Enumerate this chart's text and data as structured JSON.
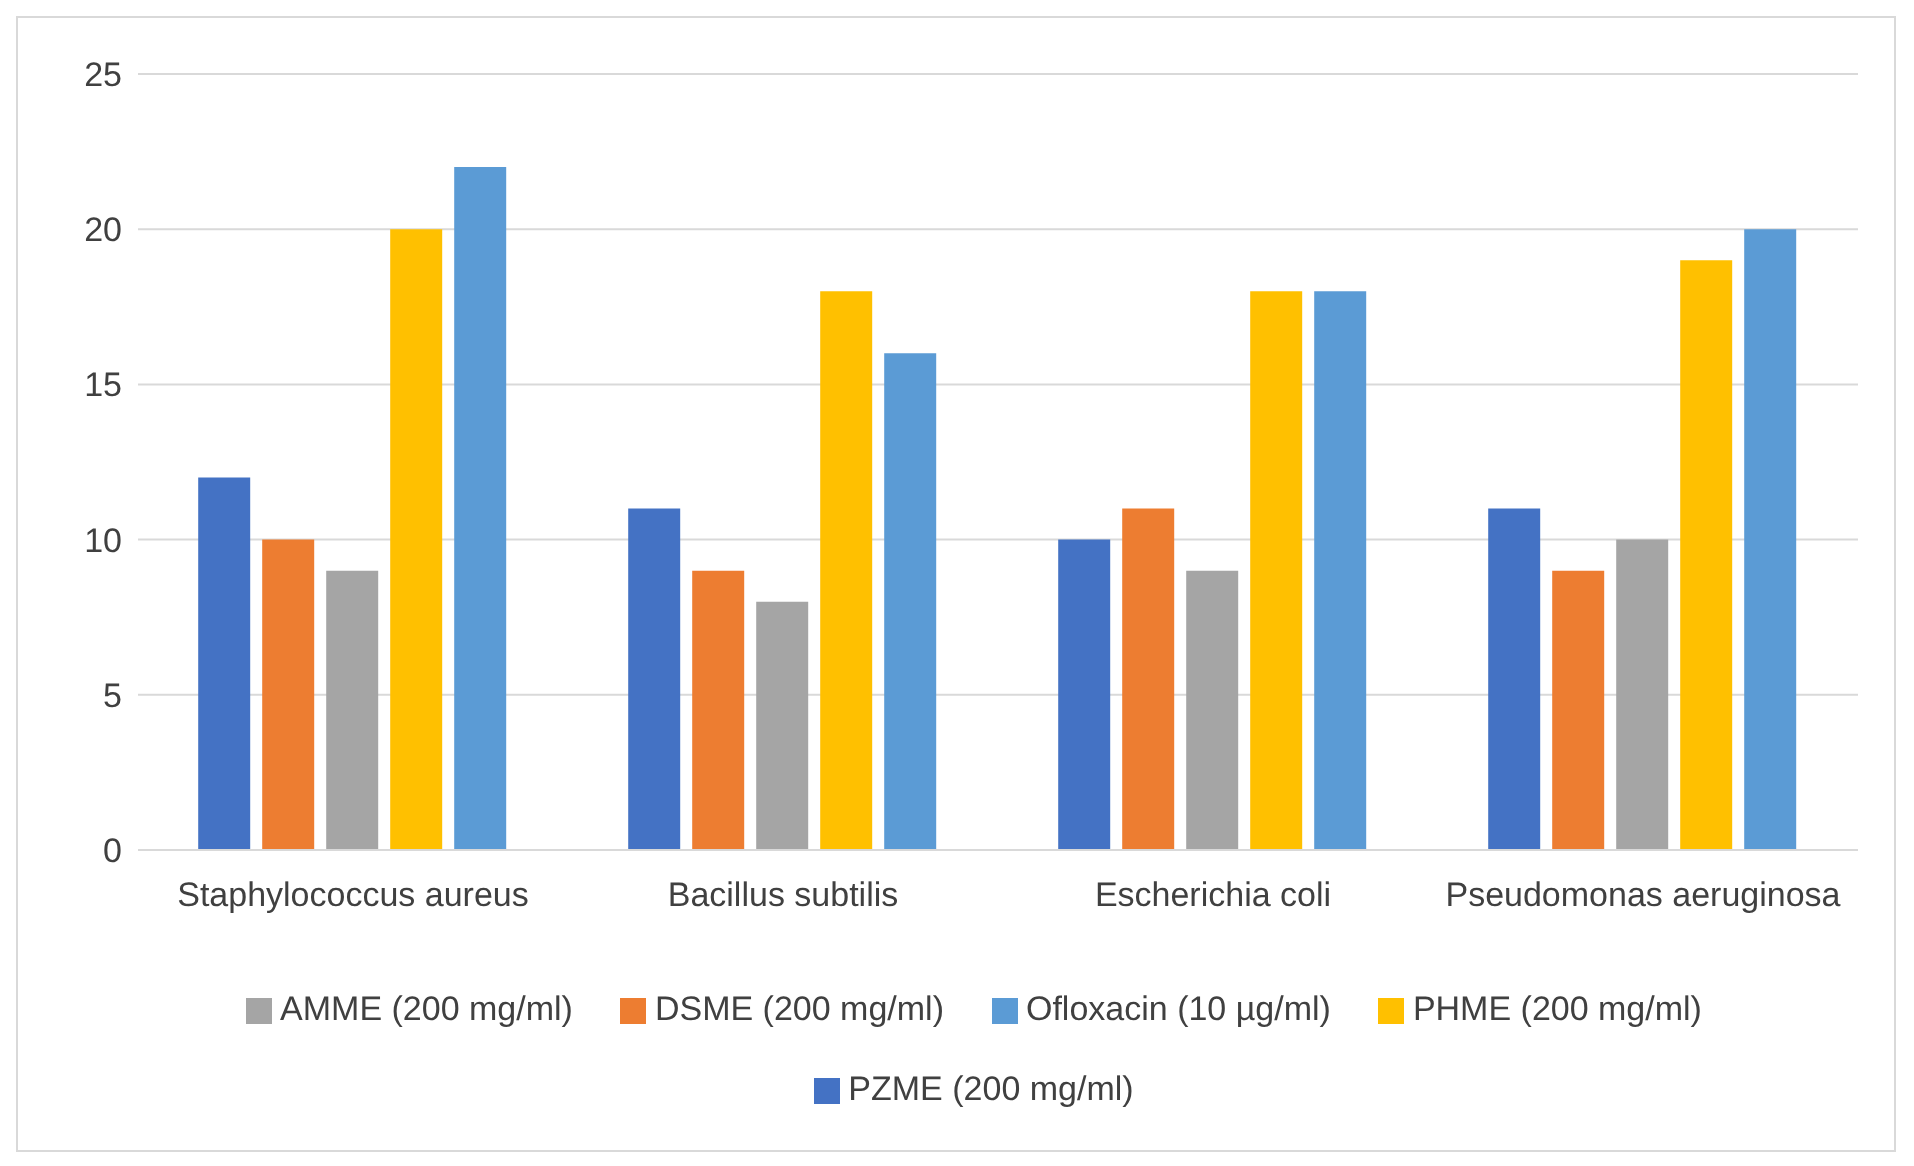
{
  "chart_data": {
    "type": "bar",
    "categories": [
      "Staphylococcus aureus",
      "Bacillus subtilis",
      "Escherichia coli",
      "Pseudomonas aeruginosa"
    ],
    "series": [
      {
        "name": "PZME (200 mg/ml)",
        "color": "#4472c4",
        "values": [
          12,
          11,
          10,
          11
        ]
      },
      {
        "name": "DSME (200 mg/ml)",
        "color": "#ed7d31",
        "values": [
          10,
          9,
          11,
          9
        ]
      },
      {
        "name": "AMME (200 mg/ml)",
        "color": "#a5a5a5",
        "values": [
          9,
          8,
          9,
          10
        ]
      },
      {
        "name": "PHME (200 mg/ml)",
        "color": "#ffc000",
        "values": [
          20,
          18,
          18,
          19
        ]
      },
      {
        "name": "Ofloxacin (10 µg/ml)",
        "color": "#5b9bd5",
        "values": [
          22,
          16,
          18,
          20
        ]
      }
    ],
    "ylim": [
      0,
      25
    ],
    "yticks": [
      0,
      5,
      10,
      15,
      20,
      25
    ],
    "grid": "y",
    "legend": "bottom"
  }
}
